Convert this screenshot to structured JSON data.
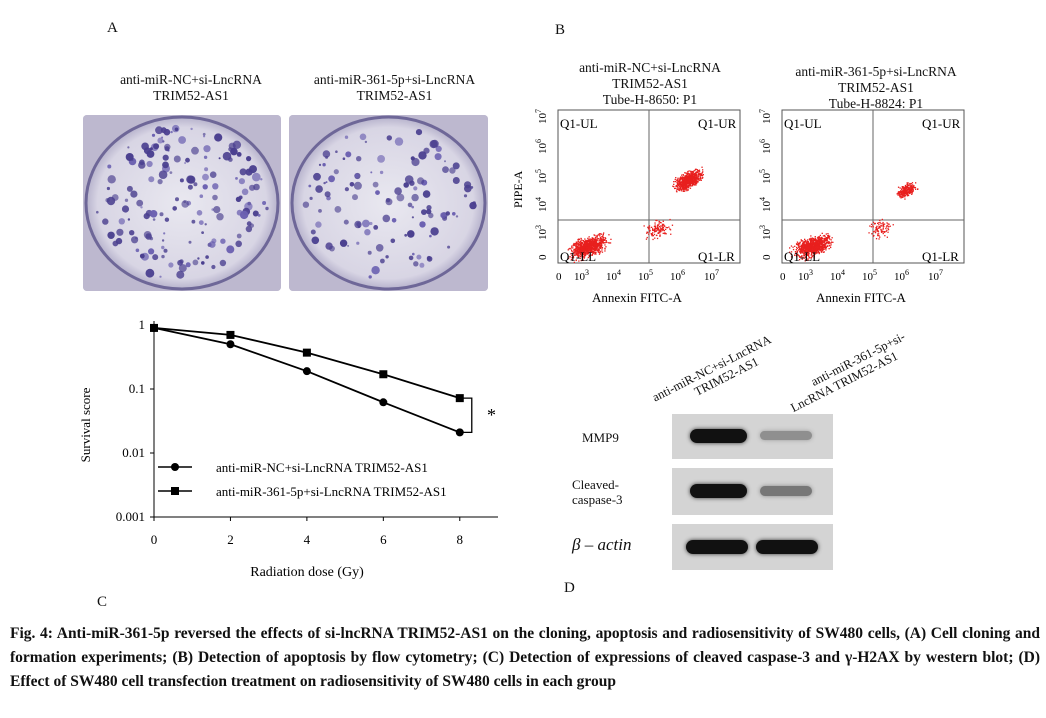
{
  "panels": {
    "a_label": "A",
    "b_label": "B",
    "c_label": "C",
    "d_label": "D"
  },
  "panel_a": {
    "left_title_1": "anti-miR-NC+si-LncRNA",
    "left_title_2": "TRIM52-AS1",
    "right_title_1": "anti-miR-361-5p+si-LncRNA",
    "right_title_2": "TRIM52-AS1"
  },
  "panel_b": {
    "left_title_1": "anti-miR-NC+si-LncRNA",
    "left_title_2": "TRIM52-AS1",
    "left_tube": "Tube-H-8650: P1",
    "right_title_1": "anti-miR-361-5p+si-LncRNA",
    "right_title_2": "TRIM52-AS1",
    "right_tube": "Tube-H-8824: P1",
    "ylabel": "PIPE-A",
    "xlabel": "Annexin FITC-A",
    "quad_ul": "Q1-UL",
    "quad_ur": "Q1-UR",
    "quad_ll": "Q1-LL",
    "quad_lr": "Q1-LR",
    "x_ticks": [
      "0",
      "10",
      "10",
      "10",
      "10",
      "10"
    ],
    "x_ticks_exp": [
      "",
      "3",
      "4",
      "5",
      "6",
      "7"
    ],
    "y_ticks": [
      "0",
      "10",
      "10",
      "10",
      "10",
      "10"
    ],
    "y_ticks_exp": [
      "",
      "3",
      "4",
      "5",
      "6",
      "7"
    ]
  },
  "chart_data": {
    "type": "line",
    "x": [
      0,
      2,
      4,
      6,
      8
    ],
    "series": [
      {
        "name": "anti-miR-NC+si-LncRNA TRIM52-AS1",
        "marker": "circle",
        "values": [
          0.9,
          0.5,
          0.19,
          0.062,
          0.021
        ]
      },
      {
        "name": "anti-miR-361-5p+si-LncRNA TRIM52-AS1",
        "marker": "square",
        "values": [
          0.9,
          0.7,
          0.37,
          0.17,
          0.072
        ]
      }
    ],
    "xlabel": "Radiation dose (Gy)",
    "ylabel": "Survival score",
    "x_ticks": [
      "0",
      "2",
      "4",
      "6",
      "8"
    ],
    "y_ticks": [
      "1",
      "0.1",
      "0.01",
      "0.001"
    ],
    "ylim": [
      0.001,
      1
    ],
    "yscale": "log",
    "annotation": "*",
    "legend_position": "bottom-center"
  },
  "panel_d": {
    "lane1_1": "anti-miR-NC+si-LncRNA",
    "lane1_2": "TRIM52-AS1",
    "lane2_1": "anti-miR-361-5p+si-",
    "lane2_2": "LncRNA TRIM52-AS1",
    "row1": "MMP9",
    "row2_1": "Cleaved-",
    "row2_2": "caspase-3",
    "row3": "β – actin"
  },
  "caption": "Fig. 4: Anti-miR-361-5p reversed the effects of si-lncRNA TRIM52-AS1 on the cloning, apoptosis and radiosensitivity of SW480 cells, (A) Cell cloning and formation experiments; (B) Detection of apoptosis by flow cytometry; (C) Detection of expressions of cleaved caspase-3 and γ-H2AX by western blot; (D) Effect of SW480 cell transfection treatment on radiosensitivity of SW480 cells in each group"
}
